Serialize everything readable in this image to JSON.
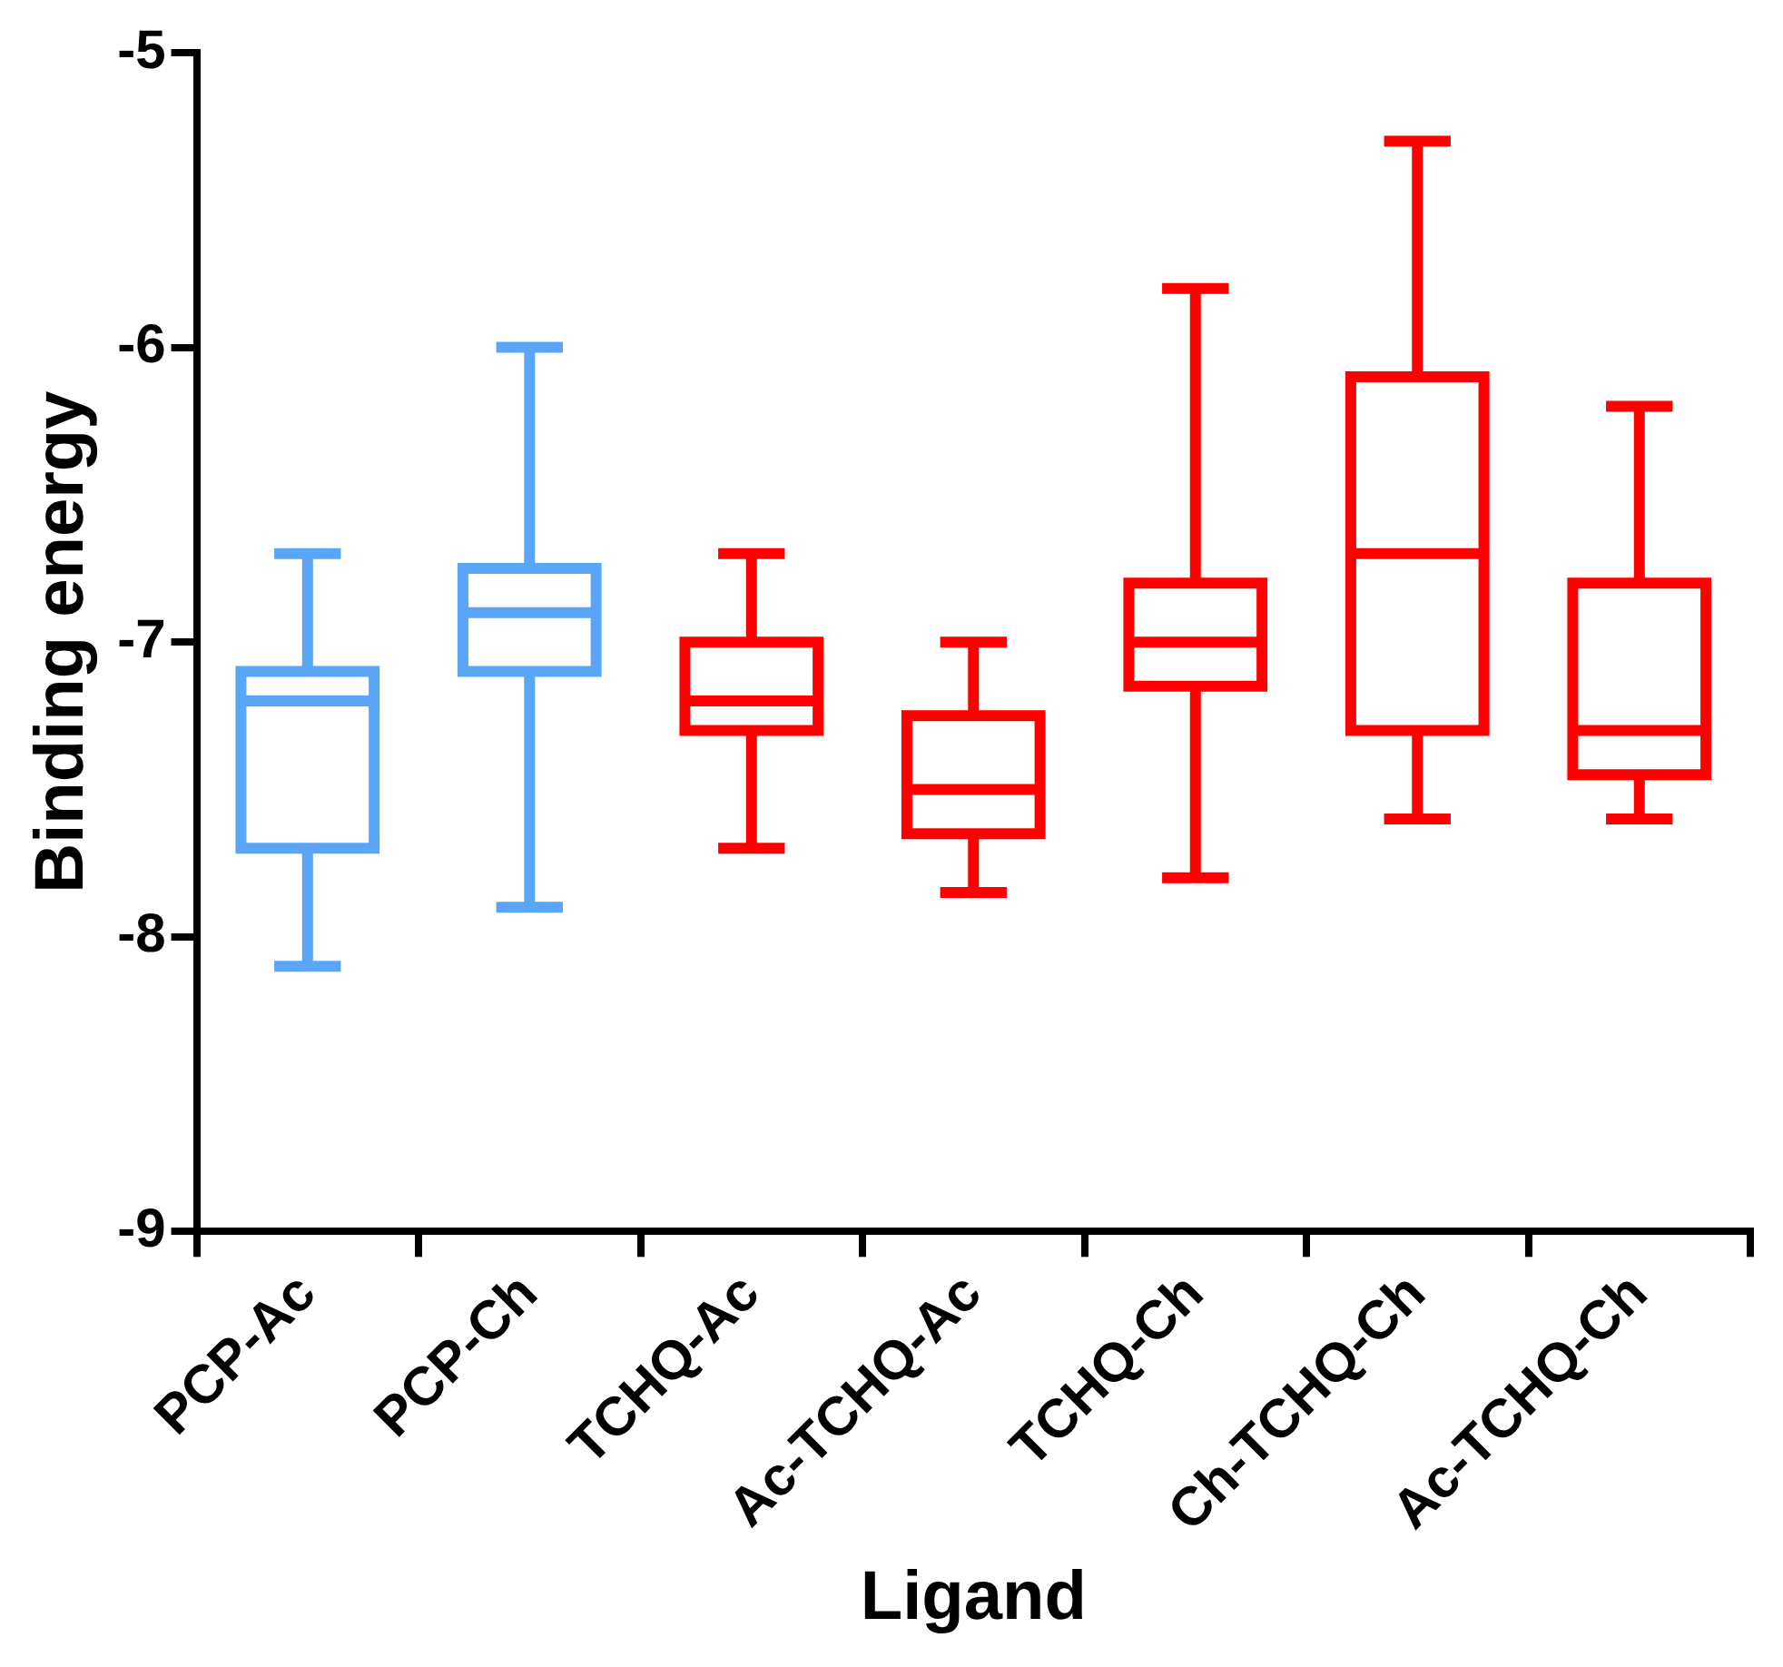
{
  "chart_data": {
    "type": "box",
    "xlabel": "Ligand",
    "ylabel": "Binding energy",
    "categories": [
      "PCP-Ac",
      "PCP-Ch",
      "TCHQ-Ac",
      "Ac-TCHQ-Ac",
      "TCHQ-Ch",
      "Ch-TCHQ-Ch",
      "Ac-TCHQ-Ch"
    ],
    "colors": [
      "#5aa5f5",
      "#5aa5f5",
      "#ff0000",
      "#ff0000",
      "#ff0000",
      "#ff0000",
      "#ff0000"
    ],
    "boxes": [
      {
        "low": -8.1,
        "q1": -7.7,
        "median": -7.2,
        "q3": -7.1,
        "high": -6.7
      },
      {
        "low": -7.9,
        "q1": -7.1,
        "median": -6.9,
        "q3": -6.75,
        "high": -6.0
      },
      {
        "low": -7.7,
        "q1": -7.3,
        "median": -7.2,
        "q3": -7.0,
        "high": -6.7
      },
      {
        "low": -7.85,
        "q1": -7.65,
        "median": -7.5,
        "q3": -7.25,
        "high": -7.0
      },
      {
        "low": -7.8,
        "q1": -7.15,
        "median": -7.0,
        "q3": -6.8,
        "high": -5.8
      },
      {
        "low": -7.6,
        "q1": -7.3,
        "median": -6.7,
        "q3": -6.1,
        "high": -5.3
      },
      {
        "low": -7.6,
        "q1": -7.45,
        "median": -7.3,
        "q3": -6.8,
        "high": -6.2
      }
    ],
    "ylim": [
      -9,
      -5
    ],
    "yticks": [
      -9,
      -8,
      -7,
      -6,
      -5
    ],
    "grid": false,
    "legend": false
  }
}
